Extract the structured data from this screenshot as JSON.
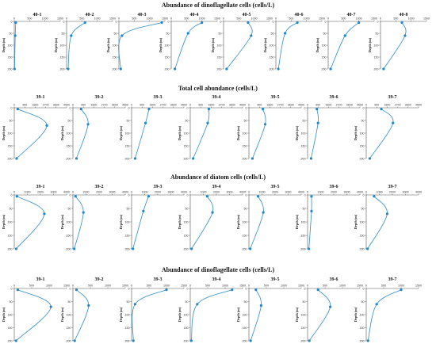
{
  "colors": {
    "series": "#2e8bc9",
    "marker": "#1f86cc",
    "axis": "#555555"
  },
  "chart_data": [
    {
      "type": "line",
      "title": "Abundance of dinoflagellate cells (cells/L)",
      "ylabel": "Depth (m)",
      "xlim": [
        0,
        1500
      ],
      "xticks": [
        "0",
        "500",
        "1000",
        "1500"
      ],
      "ylim": [
        200,
        0
      ],
      "yticks": [
        "0",
        "50",
        "100",
        "150",
        "200"
      ],
      "panels": [
        {
          "name": "40-1",
          "points": [
            [
              50,
              5
            ],
            [
              30,
              60
            ],
            [
              10,
              200
            ]
          ]
        },
        {
          "name": "40-2",
          "points": [
            [
              600,
              5
            ],
            [
              150,
              60
            ],
            [
              50,
              200
            ]
          ]
        },
        {
          "name": "40-3",
          "points": [
            [
              1400,
              5
            ],
            [
              100,
              60
            ],
            [
              60,
              200
            ]
          ]
        },
        {
          "name": "40-4",
          "points": [
            [
              1000,
              5
            ],
            [
              550,
              50
            ],
            [
              120,
              200
            ]
          ]
        },
        {
          "name": "40-5",
          "points": [
            [
              800,
              5
            ],
            [
              900,
              60
            ],
            [
              100,
              200
            ]
          ]
        },
        {
          "name": "40-6",
          "points": [
            [
              700,
              5
            ],
            [
              300,
              50
            ],
            [
              80,
              200
            ]
          ]
        },
        {
          "name": "40-7",
          "points": [
            [
              1000,
              5
            ],
            [
              550,
              60
            ],
            [
              80,
              200
            ]
          ]
        },
        {
          "name": "40-8",
          "points": [
            [
              700,
              5
            ],
            [
              800,
              60
            ],
            [
              100,
              200
            ]
          ]
        }
      ]
    },
    {
      "type": "line",
      "title": "Total cell abundance (cells/L)",
      "ylabel": "Depth (m)",
      "xlim": [
        0,
        4500
      ],
      "xticks": [
        "0",
        "900",
        "1800",
        "2700",
        "3600",
        "4500"
      ],
      "ylim": [
        200,
        0
      ],
      "yticks": [
        "0",
        "50",
        "100",
        "150",
        "200"
      ],
      "panels": [
        {
          "name": "39-1",
          "points": [
            [
              300,
              5
            ],
            [
              2800,
              70
            ],
            [
              200,
              200
            ]
          ]
        },
        {
          "name": "39-2",
          "points": [
            [
              700,
              5
            ],
            [
              1300,
              65
            ],
            [
              300,
              200
            ]
          ]
        },
        {
          "name": "39-3",
          "points": [
            [
              1500,
              5
            ],
            [
              1200,
              60
            ],
            [
              300,
              200
            ]
          ]
        },
        {
          "name": "39-4",
          "points": [
            [
              1600,
              5
            ],
            [
              1500,
              60
            ],
            [
              250,
              200
            ]
          ]
        },
        {
          "name": "39-5",
          "points": [
            [
              1200,
              5
            ],
            [
              1400,
              65
            ],
            [
              300,
              200
            ]
          ]
        },
        {
          "name": "39-6",
          "points": [
            [
              800,
              5
            ],
            [
              900,
              60
            ],
            [
              300,
              200
            ]
          ]
        },
        {
          "name": "39-7",
          "points": [
            [
              1300,
              5
            ],
            [
              2300,
              60
            ],
            [
              300,
              200
            ]
          ]
        }
      ]
    },
    {
      "type": "line",
      "title": "Abundance of diatom cells (cells/L)",
      "ylabel": "Depth (m)",
      "xlim": [
        0,
        4000
      ],
      "xticks": [
        "0",
        "1000",
        "2000",
        "3000",
        "4000"
      ],
      "ylim": [
        200,
        0
      ],
      "yticks": [
        "0",
        "50",
        "100",
        "150",
        "200"
      ],
      "panels": [
        {
          "name": "39-1",
          "points": [
            [
              200,
              5
            ],
            [
              2300,
              70
            ],
            [
              150,
              200
            ]
          ]
        },
        {
          "name": "39-2",
          "points": [
            [
              200,
              5
            ],
            [
              800,
              65
            ],
            [
              100,
              200
            ]
          ]
        },
        {
          "name": "39-3",
          "points": [
            [
              1300,
              5
            ],
            [
              900,
              60
            ],
            [
              100,
              200
            ]
          ]
        },
        {
          "name": "39-4",
          "points": [
            [
              1300,
              5
            ],
            [
              1700,
              65
            ],
            [
              100,
              200
            ]
          ]
        },
        {
          "name": "39-5",
          "points": [
            [
              700,
              5
            ],
            [
              1100,
              65
            ],
            [
              100,
              200
            ]
          ]
        },
        {
          "name": "39-6",
          "points": [
            [
              300,
              5
            ],
            [
              300,
              60
            ],
            [
              100,
              200
            ]
          ]
        },
        {
          "name": "39-7",
          "points": [
            [
              600,
              5
            ],
            [
              1600,
              70
            ],
            [
              100,
              200
            ]
          ]
        }
      ]
    },
    {
      "type": "line",
      "title": "Abundance of dinoflagellate cells (cells/L)",
      "ylabel": "Depth (m)",
      "xlim": [
        0,
        1500
      ],
      "xticks": [
        "0",
        "500",
        "1000",
        "1500"
      ],
      "ylim": [
        200,
        0
      ],
      "yticks": [
        "0",
        "50",
        "100",
        "150",
        "200"
      ],
      "panels": [
        {
          "name": "39-1",
          "points": [
            [
              100,
              5
            ],
            [
              1050,
              70
            ],
            [
              50,
              200
            ]
          ]
        },
        {
          "name": "39-2",
          "points": [
            [
              100,
              5
            ],
            [
              450,
              65
            ],
            [
              50,
              200
            ]
          ]
        },
        {
          "name": "39-3",
          "points": [
            [
              1000,
              5
            ],
            [
              100,
              60
            ],
            [
              50,
              200
            ]
          ]
        },
        {
          "name": "39-4",
          "points": [
            [
              1200,
              5
            ],
            [
              200,
              60
            ],
            [
              30,
              200
            ]
          ]
        },
        {
          "name": "39-5",
          "points": [
            [
              200,
              5
            ],
            [
              350,
              65
            ],
            [
              50,
              200
            ]
          ]
        },
        {
          "name": "39-6",
          "points": [
            [
              300,
              5
            ],
            [
              650,
              70
            ],
            [
              50,
              200
            ]
          ]
        },
        {
          "name": "39-7",
          "points": [
            [
              1000,
              5
            ],
            [
              300,
              60
            ],
            [
              50,
              200
            ]
          ]
        }
      ]
    }
  ]
}
